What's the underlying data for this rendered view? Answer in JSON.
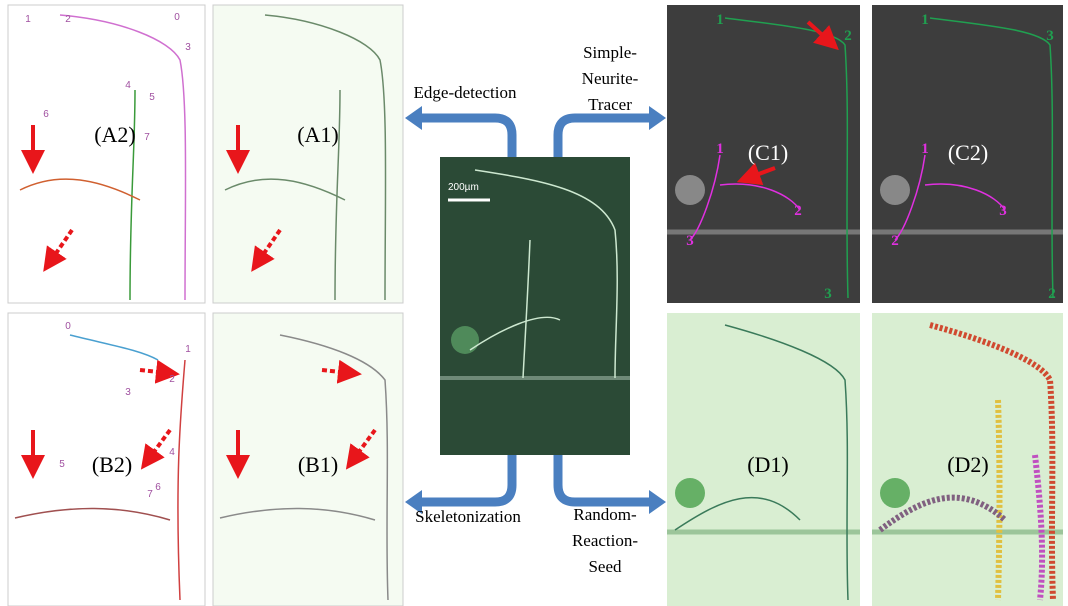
{
  "panels": [
    {
      "label": "(A2)"
    },
    {
      "label": "(A1)"
    },
    {
      "label": "(C1)"
    },
    {
      "label": "(C2)"
    },
    {
      "label": "(B2)"
    },
    {
      "label": "(B1)"
    },
    {
      "label": "(D1)"
    },
    {
      "label": "(D2)"
    }
  ],
  "methods": [
    {
      "lines": [
        "Edge-detection"
      ]
    },
    {
      "lines": [
        "Simple-",
        "Neurite-",
        "Tracer"
      ]
    },
    {
      "lines": [
        "Skeletonization"
      ]
    },
    {
      "lines": [
        "Random-",
        "Reaction-",
        "Seed"
      ]
    }
  ],
  "scale_bar": "200µm",
  "c1_labels": [
    "1",
    "2",
    "1",
    "2",
    "3",
    "3"
  ],
  "c2_labels": [
    "1",
    "3",
    "1",
    "3",
    "2",
    "2"
  ],
  "a2_labels": [
    "1",
    "2",
    "0",
    "3",
    "4",
    "5",
    "6",
    "7"
  ],
  "b2_labels": [
    "0",
    "1",
    "2",
    "3",
    "4",
    "5",
    "6",
    "7"
  ]
}
